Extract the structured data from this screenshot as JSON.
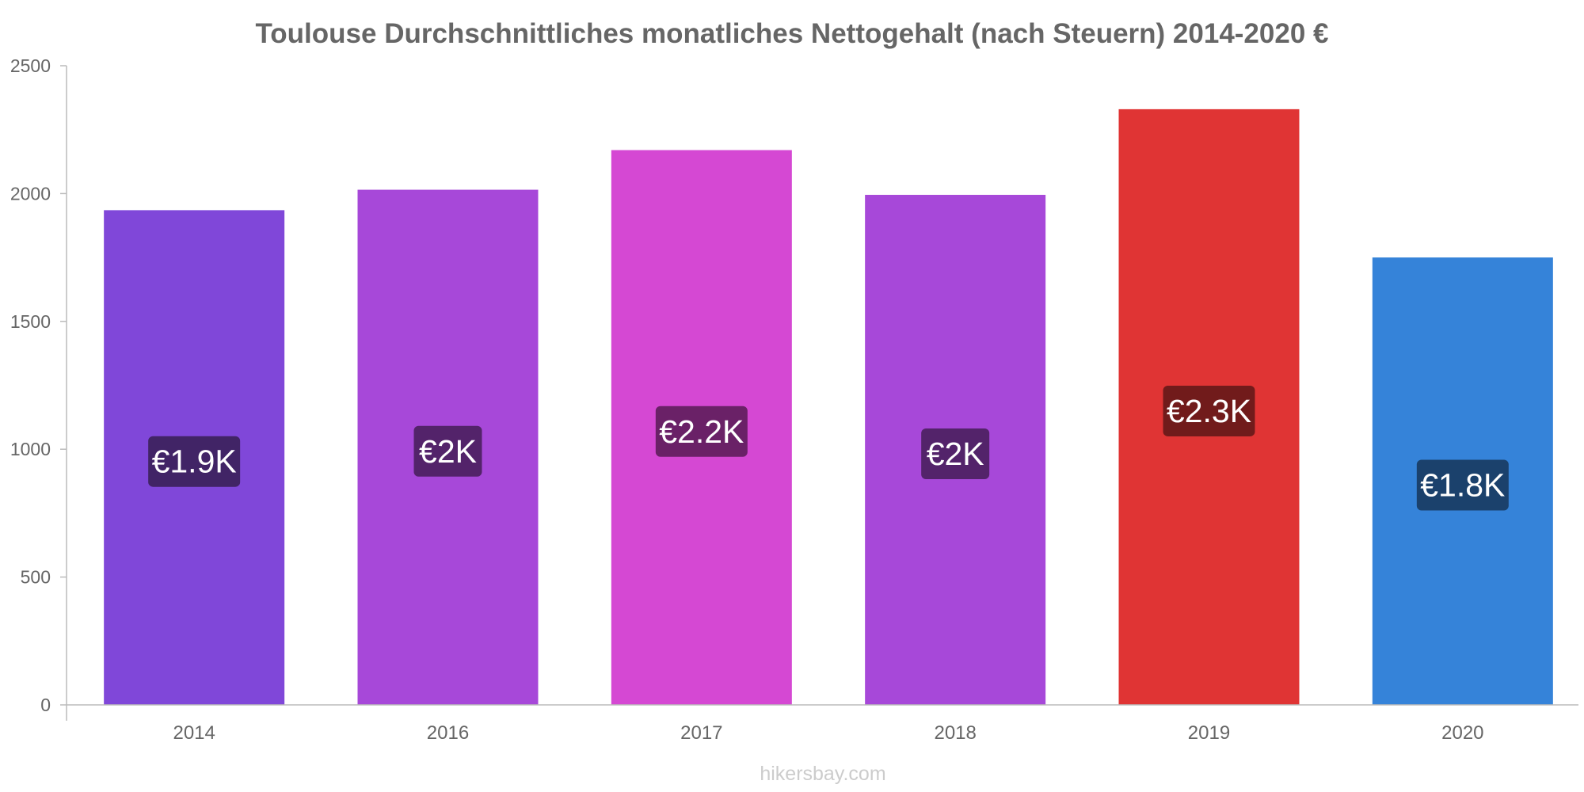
{
  "chart_data": {
    "type": "bar",
    "title": "Toulouse Durchschnittliches monatliches Nettogehalt (nach Steuern) 2014-2020 €",
    "categories": [
      "2014",
      "2016",
      "2017",
      "2018",
      "2019",
      "2020"
    ],
    "values": [
      1935,
      2015,
      2170,
      1995,
      2330,
      1750
    ],
    "data_labels": [
      "€1.9K",
      "€2K",
      "€2.2K",
      "€2K",
      "€2.3K",
      "€1.8K"
    ],
    "bar_colors": [
      "#8047d9",
      "#a748d9",
      "#d548d3",
      "#a748d9",
      "#e03434",
      "#3583d9"
    ],
    "label_bg_colors": [
      "#412466",
      "#53236a",
      "#6a2167",
      "#53236a",
      "#711b1b",
      "#1b416c"
    ],
    "xlabel": "",
    "ylabel": "",
    "ylim": [
      0,
      2500
    ],
    "yticks": [
      0,
      500,
      1000,
      1500,
      2000,
      2500
    ],
    "grid": false,
    "legend": "none"
  },
  "watermark": "hikersbay.com"
}
